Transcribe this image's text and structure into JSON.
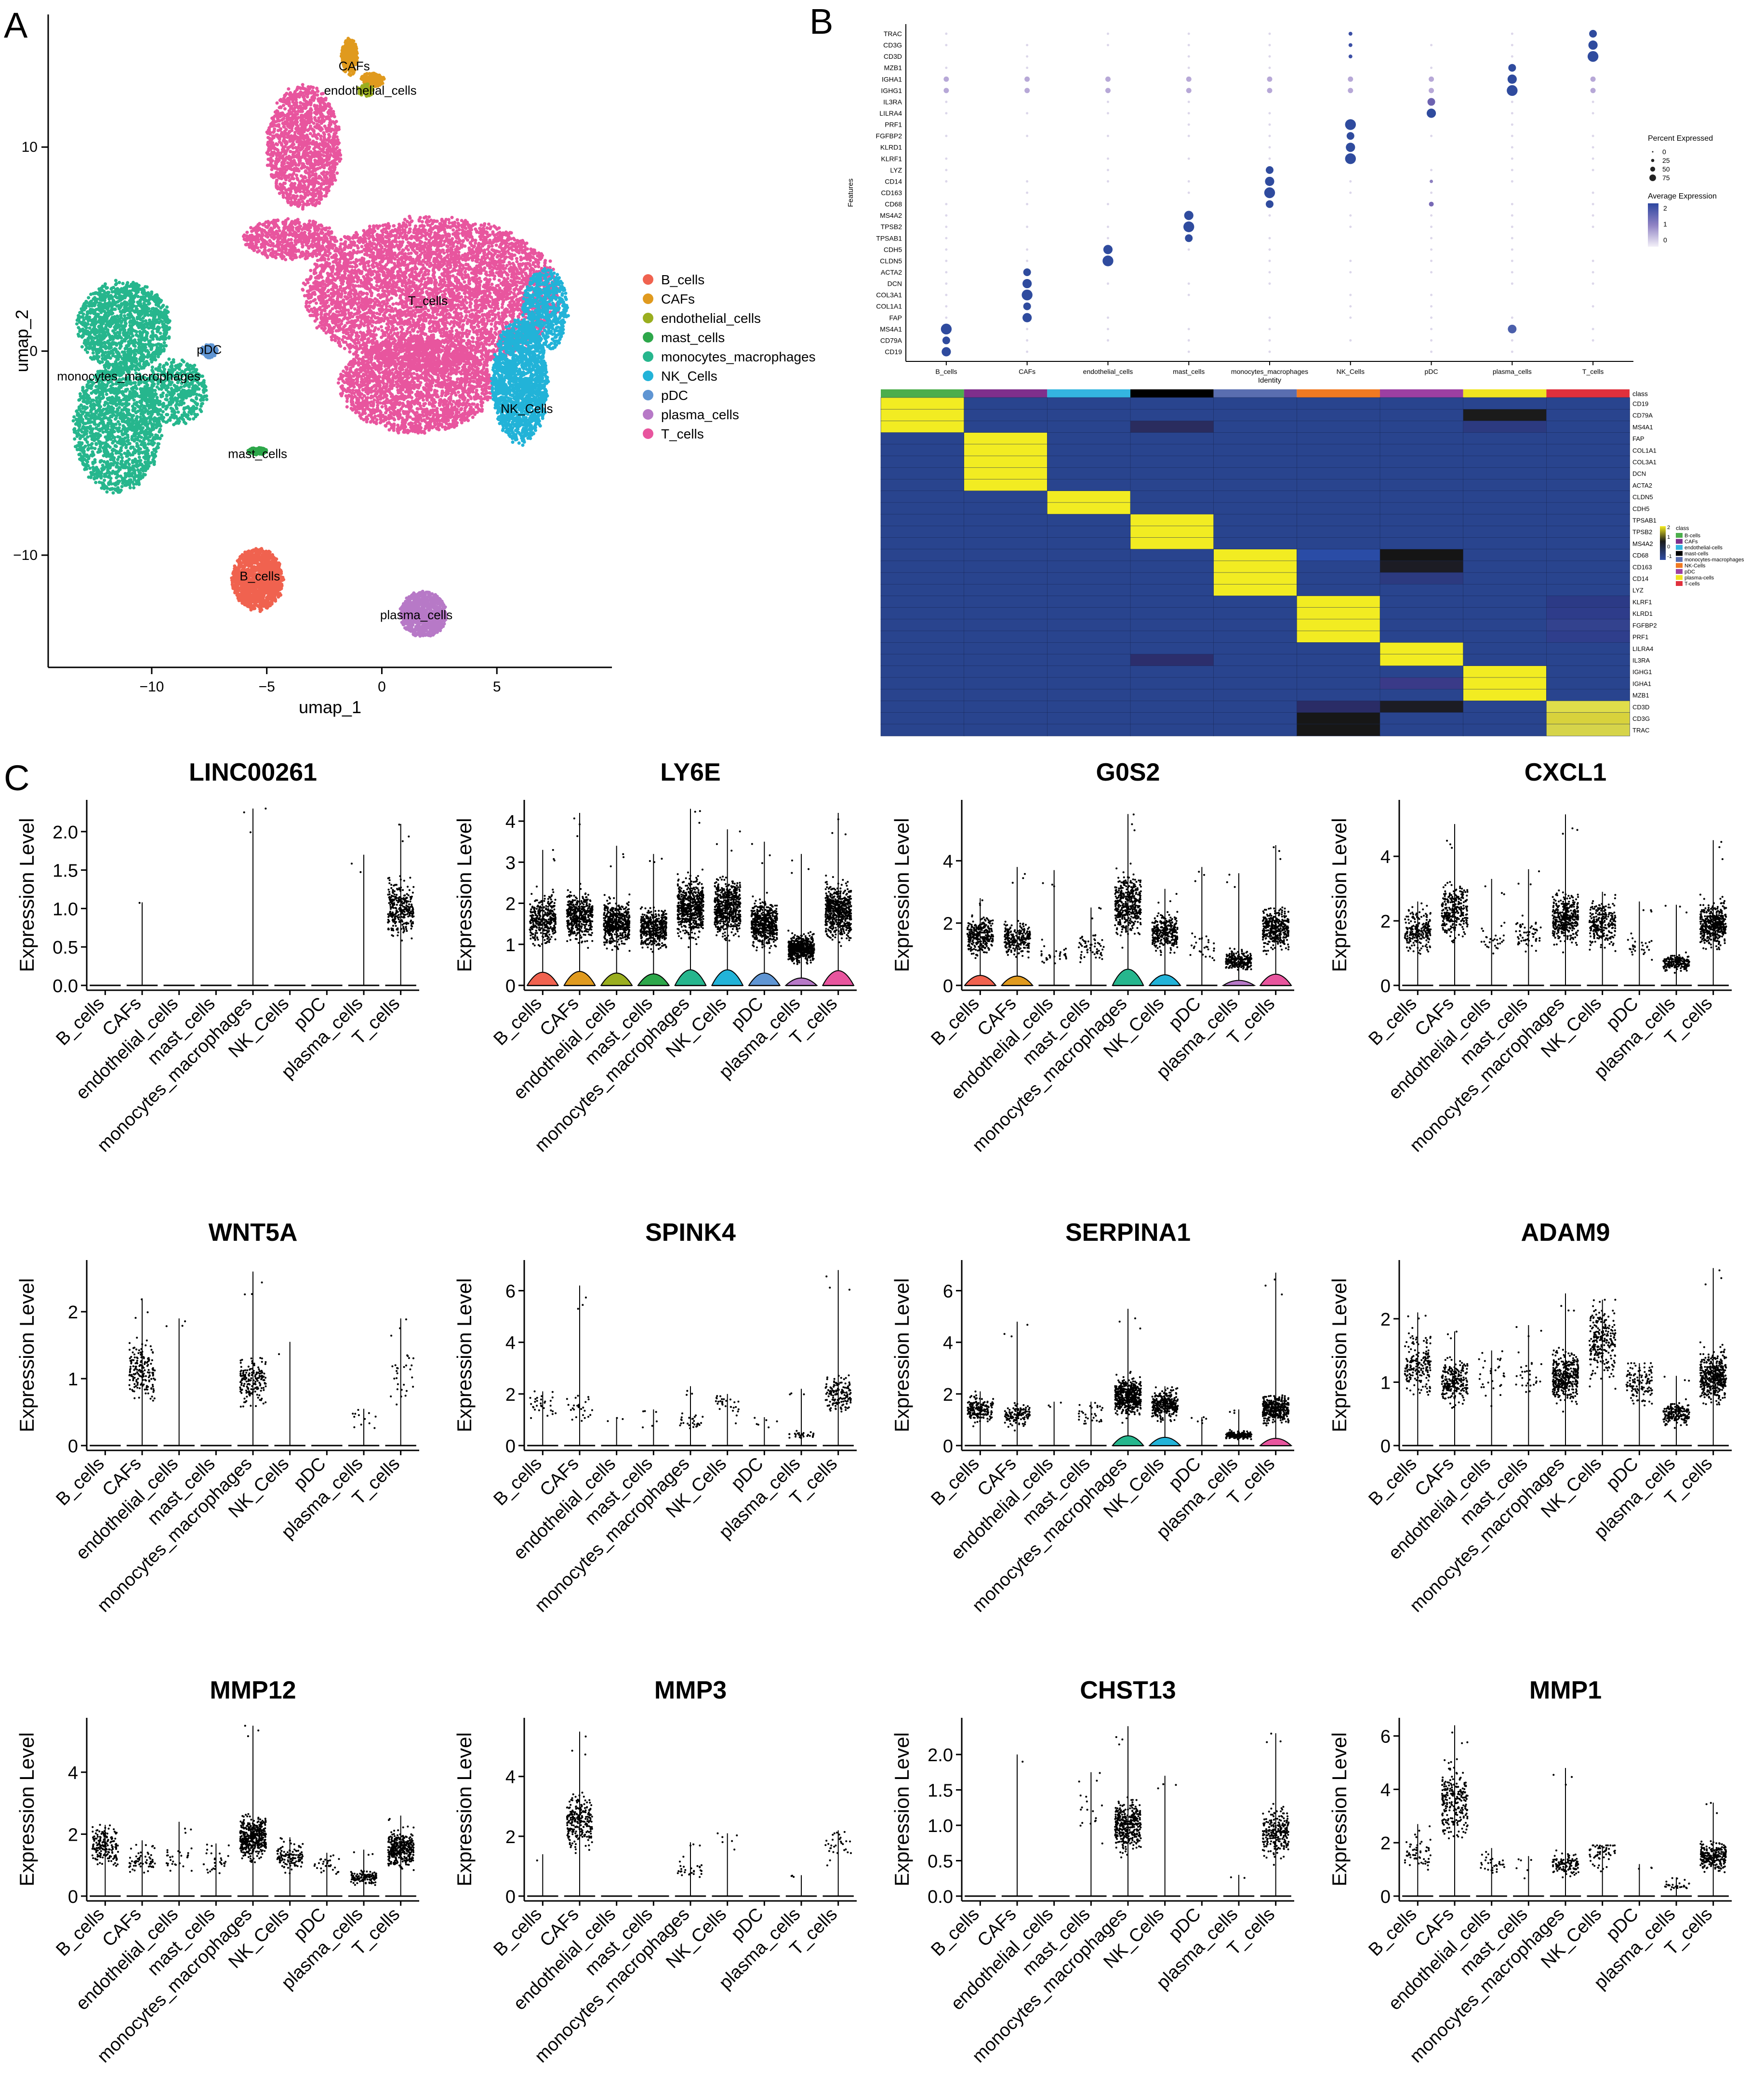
{
  "figure": {
    "panel_labels": [
      "A",
      "B",
      "C"
    ],
    "cell_types": [
      "B_cells",
      "CAFs",
      "endothelial_cells",
      "mast_cells",
      "monocytes_macrophages",
      "NK_Cells",
      "pDC",
      "plasma_cells",
      "T_cells"
    ],
    "type_colors": [
      "#f0624f",
      "#e09a1e",
      "#9aae1f",
      "#2da74a",
      "#26b68d",
      "#22b3d8",
      "#5f95d3",
      "#b779c7",
      "#e8559e"
    ]
  },
  "chart_data": [
    {
      "id": "umap",
      "type": "scatter",
      "title": "",
      "xlabel": "umap_1",
      "ylabel": "umap_2",
      "xlim": [
        -14.5,
        10
      ],
      "ylim": [
        -15.5,
        16.5
      ],
      "xticks": [
        -10,
        -5,
        0,
        5
      ],
      "yticks": [
        -10,
        0,
        10
      ],
      "legend_entries": [
        "B_cells",
        "CAFs",
        "endothelial_cells",
        "mast_cells",
        "monocytes_macrophages",
        "NK_Cells",
        "pDC",
        "plasma_cells",
        "T_cells"
      ],
      "legend_position": "right",
      "clusters": [
        {
          "name": "B_cells",
          "color": "#f0624f",
          "center": [
            -5.3,
            -11
          ],
          "label": "B_cells"
        },
        {
          "name": "CAFs",
          "color": "#e09a1e",
          "center": [
            -1.2,
            14
          ],
          "label": "CAFs"
        },
        {
          "name": "endothelial_cells",
          "color": "#9aae1f",
          "center": [
            -0.5,
            12.8
          ],
          "label": "endothelial_cells"
        },
        {
          "name": "mast_cells",
          "color": "#2da74a",
          "center": [
            -5.4,
            -5
          ],
          "label": "mast_cells"
        },
        {
          "name": "monocytes_macrophages",
          "color": "#26b68d",
          "center": [
            -11,
            -1.2
          ],
          "label": "monocytes_macrophages"
        },
        {
          "name": "NK_Cells",
          "color": "#22b3d8",
          "center": [
            6.3,
            -2.8
          ],
          "label": "NK_Cells"
        },
        {
          "name": "pDC",
          "color": "#5f95d3",
          "center": [
            -7.5,
            0.1
          ],
          "label": "pDC"
        },
        {
          "name": "plasma_cells",
          "color": "#b779c7",
          "center": [
            1.5,
            -12.9
          ],
          "label": "plasma_cells"
        },
        {
          "name": "T_cells",
          "color": "#e8559e",
          "center": [
            2,
            2.5
          ],
          "label": "T_cells"
        }
      ]
    },
    {
      "id": "dotplot",
      "type": "scatter",
      "title": "",
      "xlabel": "Identity",
      "ylabel": "Features",
      "x_categories": [
        "B_cells",
        "CAFs",
        "endothelial_cells",
        "mast_cells",
        "monocytes_macrophages",
        "NK_Cells",
        "pDC",
        "plasma_cells",
        "T_cells"
      ],
      "y_features_top_to_bottom": [
        "TRAC",
        "CD3G",
        "CD3D",
        "MZB1",
        "IGHA1",
        "IGHG1",
        "IL3RA",
        "LILRA4",
        "PRF1",
        "FGFBP2",
        "KLRD1",
        "KLRF1",
        "LYZ",
        "CD14",
        "CD163",
        "CD68",
        "MS4A2",
        "TPSB2",
        "TPSAB1",
        "CDH5",
        "CLDN5",
        "ACTA2",
        "DCN",
        "COL3A1",
        "COL1A1",
        "FAP",
        "MS4A1",
        "CD79A",
        "CD19"
      ],
      "legend_size_title": "Percent Expressed",
      "legend_size_values": [
        0,
        25,
        50,
        75
      ],
      "legend_color_title": "Average Expression",
      "legend_color_ticks": [
        2,
        1,
        0
      ],
      "markers": {
        "T_cells": [
          "TRAC",
          "CD3G",
          "CD3D"
        ],
        "plasma_cells": [
          "MZB1",
          "IGHA1",
          "IGHG1"
        ],
        "pDC": [
          "IL3RA",
          "LILRA4"
        ],
        "NK_Cells": [
          "PRF1",
          "FGFBP2",
          "KLRD1",
          "KLRF1"
        ],
        "monocytes_macrophages": [
          "LYZ",
          "CD14",
          "CD163",
          "CD68"
        ],
        "mast_cells": [
          "MS4A2",
          "TPSB2",
          "TPSAB1"
        ],
        "endothelial_cells": [
          "CDH5",
          "CLDN5"
        ],
        "CAFs": [
          "ACTA2",
          "DCN",
          "COL3A1",
          "COL1A1",
          "FAP"
        ],
        "B_cells": [
          "MS4A1",
          "CD79A",
          "CD19"
        ]
      }
    },
    {
      "id": "heatmap",
      "type": "heatmap",
      "title": "",
      "class_bar_label": "class",
      "class_colors": [
        "#4cae4c",
        "#7f2f8c",
        "#34b5e0",
        "#000000",
        "#5a6eb0",
        "#f07a22",
        "#9c3fa2",
        "#f0e420",
        "#e0303c"
      ],
      "rows": [
        "CD19",
        "CD79A",
        "MS4A1",
        "FAP",
        "COL1A1",
        "COL3A1",
        "DCN",
        "ACTA2",
        "CLDN5",
        "CDH5",
        "TPSAB1",
        "TPSB2",
        "MS4A2",
        "CD68",
        "CD163",
        "CD14",
        "LYZ",
        "KLRF1",
        "KLRD1",
        "FGFBP2",
        "PRF1",
        "LILRA4",
        "IL3RA",
        "IGHG1",
        "IGHA1",
        "MZB1",
        "CD3D",
        "CD3G",
        "TRAC"
      ],
      "row_group": [
        0,
        0,
        0,
        1,
        1,
        1,
        1,
        1,
        2,
        2,
        3,
        3,
        3,
        4,
        4,
        4,
        4,
        5,
        5,
        5,
        5,
        6,
        6,
        7,
        7,
        7,
        8,
        8,
        8
      ],
      "scale_ticks": [
        "2",
        "1",
        "0",
        "-1"
      ],
      "legend_class_title": "class",
      "legend_class_labels": [
        "B-cells",
        "CAFs",
        "endothelial-cells",
        "mast-cells",
        "monocytes-macrophages",
        "NK-Cells",
        "pDC",
        "plasma-cells",
        "T-cells"
      ]
    },
    {
      "id": "violins",
      "type": "scatter",
      "ylabel": "Expression Level",
      "categories": [
        "B_cells",
        "CAFs",
        "endothelial_cells",
        "mast_cells",
        "monocytes_macrophages",
        "NK_Cells",
        "pDC",
        "plasma_cells",
        "T_cells"
      ],
      "panels": [
        {
          "title": "LINC00261",
          "ymax": 2.3,
          "yticks": [
            "0.0",
            "0.5",
            "1.0",
            "1.5",
            "2.0"
          ],
          "tick_values": [
            0,
            0.5,
            1,
            1.5,
            2
          ],
          "lim": 2.35,
          "mean": [
            0,
            0,
            0,
            0,
            1.0,
            0,
            0,
            0,
            1.0
          ],
          "frac": [
            0,
            0.001,
            0,
            0,
            0.005,
            0,
            0,
            0.003,
            0.5
          ],
          "max": [
            0,
            1.08,
            0,
            0,
            2.3,
            0,
            0,
            1.7,
            2.1
          ]
        },
        {
          "title": "LY6E",
          "ymax": 4.3,
          "yticks": [
            "0",
            "1",
            "2",
            "3",
            "4"
          ],
          "tick_values": [
            0,
            1,
            2,
            3,
            4
          ],
          "lim": 4.4,
          "mean": [
            1.6,
            1.7,
            1.5,
            1.4,
            1.9,
            1.9,
            1.5,
            0.9,
            1.8
          ],
          "frac": [
            0.6,
            0.7,
            0.8,
            0.7,
            0.95,
            0.95,
            0.9,
            0.9,
            0.95
          ],
          "max": [
            3.3,
            4.2,
            3.4,
            3.2,
            4.3,
            3.8,
            3.5,
            3.2,
            4.2
          ],
          "violin": true
        },
        {
          "title": "G0S2",
          "ymax": 5.6,
          "yticks": [
            "0",
            "2",
            "4"
          ],
          "tick_values": [
            0,
            2,
            4
          ],
          "lim": 5.8,
          "mean": [
            1.6,
            1.5,
            1.0,
            1.2,
            2.6,
            1.7,
            1.3,
            0.8,
            1.8
          ],
          "frac": [
            0.5,
            0.4,
            0.05,
            0.1,
            0.7,
            0.5,
            0.05,
            0.4,
            0.6
          ],
          "max": [
            2.8,
            3.8,
            3.7,
            2.5,
            5.5,
            3.1,
            3.8,
            3.6,
            4.5
          ],
          "violin": true
        },
        {
          "title": "CXCL1",
          "ymax": 5.5,
          "yticks": [
            "0",
            "2",
            "4"
          ],
          "tick_values": [
            0,
            2,
            4
          ],
          "lim": 5.6,
          "mean": [
            1.7,
            2.3,
            1.5,
            1.6,
            2.1,
            1.9,
            1.2,
            0.7,
            1.9
          ],
          "frac": [
            0.35,
            0.5,
            0.05,
            0.1,
            0.6,
            0.4,
            0.05,
            0.3,
            0.7
          ],
          "max": [
            2.6,
            5.0,
            3.3,
            3.6,
            5.3,
            2.9,
            2.6,
            2.5,
            4.5
          ]
        },
        {
          "title": "WNT5A",
          "ymax": 2.6,
          "yticks": [
            "0",
            "1",
            "2"
          ],
          "tick_values": [
            0,
            1,
            2
          ],
          "lim": 2.7,
          "mean": [
            0,
            1.1,
            0.9,
            0,
            0.95,
            0,
            0,
            0.4,
            1.0
          ],
          "frac": [
            0,
            0.3,
            0.005,
            0,
            0.3,
            0.001,
            0,
            0.02,
            0.05
          ],
          "max": [
            0,
            2.2,
            1.9,
            0,
            2.6,
            1.55,
            0,
            0.55,
            1.9
          ]
        },
        {
          "title": "SPINK4",
          "ymax": 6.8,
          "yticks": [
            "0",
            "2",
            "4",
            "6"
          ],
          "tick_values": [
            0,
            2,
            4,
            6
          ],
          "lim": 7.0,
          "mean": [
            1.5,
            1.5,
            0.6,
            1.0,
            0.9,
            1.6,
            0.8,
            0.4,
            2.0
          ],
          "frac": [
            0.05,
            0.05,
            0.005,
            0.01,
            0.05,
            0.05,
            0.01,
            0.05,
            0.25
          ],
          "max": [
            2.1,
            6.2,
            1.1,
            1.4,
            2.3,
            2.0,
            1.1,
            2.2,
            6.8
          ]
        },
        {
          "title": "SERPINA1",
          "ymax": 6.8,
          "yticks": [
            "0",
            "2",
            "4",
            "6"
          ],
          "tick_values": [
            0,
            2,
            4,
            6
          ],
          "lim": 7.0,
          "mean": [
            1.4,
            1.2,
            0.9,
            1.2,
            1.9,
            1.6,
            0.9,
            0.4,
            1.4
          ],
          "frac": [
            0.3,
            0.2,
            0.005,
            0.05,
            0.8,
            0.5,
            0.01,
            0.3,
            0.6
          ],
          "max": [
            2.1,
            4.8,
            1.7,
            1.7,
            5.3,
            2.3,
            1.1,
            1.4,
            6.7
          ],
          "violin": true
        },
        {
          "title": "ADAM9",
          "ymax": 2.8,
          "yticks": [
            "0",
            "1",
            "2"
          ],
          "tick_values": [
            0,
            1,
            2
          ],
          "lim": 2.85,
          "mean": [
            1.3,
            1.0,
            1.1,
            1.1,
            1.1,
            1.6,
            1.0,
            0.5,
            1.1
          ],
          "frac": [
            0.3,
            0.4,
            0.05,
            0.05,
            0.6,
            0.4,
            0.2,
            0.3,
            0.7
          ],
          "max": [
            2.1,
            1.8,
            1.5,
            1.9,
            2.4,
            2.3,
            1.3,
            1.1,
            2.8
          ]
        },
        {
          "title": "MMP12",
          "ymax": 5.5,
          "yticks": [
            "0",
            "2",
            "4"
          ],
          "tick_values": [
            0,
            2,
            4
          ],
          "lim": 5.6,
          "mean": [
            1.6,
            1.1,
            1.2,
            1.1,
            1.9,
            1.3,
            1.0,
            0.6,
            1.5
          ],
          "frac": [
            0.3,
            0.1,
            0.05,
            0.05,
            0.7,
            0.2,
            0.05,
            0.2,
            0.6
          ],
          "max": [
            2.3,
            1.8,
            2.4,
            1.7,
            5.5,
            1.9,
            1.4,
            1.5,
            2.6
          ]
        },
        {
          "title": "MMP3",
          "ymax": 5.6,
          "yticks": [
            "0",
            "2",
            "4"
          ],
          "tick_values": [
            0,
            2,
            4
          ],
          "lim": 5.8,
          "mean": [
            0.8,
            2.5,
            0,
            0,
            0.9,
            1.7,
            0,
            0.5,
            1.6
          ],
          "frac": [
            0.001,
            0.4,
            0,
            0,
            0.05,
            0.01,
            0,
            0.005,
            0.05
          ],
          "max": [
            1.4,
            5.5,
            0,
            0,
            1.8,
            2.1,
            0,
            0.7,
            2.2
          ]
        },
        {
          "title": "CHST13",
          "ymax": 2.4,
          "yticks": [
            "0.0",
            "0.5",
            "1.0",
            "1.5",
            "2.0"
          ],
          "tick_values": [
            0,
            0.5,
            1,
            1.5,
            2
          ],
          "lim": 2.45,
          "mean": [
            0,
            0.7,
            0,
            1.2,
            1.0,
            1.7,
            0,
            0.2,
            0.9
          ],
          "frac": [
            0,
            0.002,
            0,
            0.03,
            0.6,
            0.005,
            0,
            0.003,
            0.4
          ],
          "max": [
            0,
            2.0,
            0,
            1.75,
            2.4,
            1.7,
            0,
            0.3,
            2.3
          ]
        },
        {
          "title": "MMP1",
          "ymax": 6.4,
          "yticks": [
            "0",
            "2",
            "4",
            "6"
          ],
          "tick_values": [
            0,
            2,
            4,
            6
          ],
          "lim": 6.5,
          "mean": [
            1.6,
            3.5,
            1.2,
            1.0,
            1.2,
            1.6,
            0.9,
            0.4,
            1.5
          ],
          "frac": [
            0.1,
            0.4,
            0.05,
            0.01,
            0.2,
            0.1,
            0.005,
            0.05,
            0.4
          ],
          "max": [
            2.7,
            6.4,
            1.8,
            1.5,
            4.8,
            1.9,
            1.2,
            0.7,
            3.5
          ]
        }
      ]
    }
  ]
}
